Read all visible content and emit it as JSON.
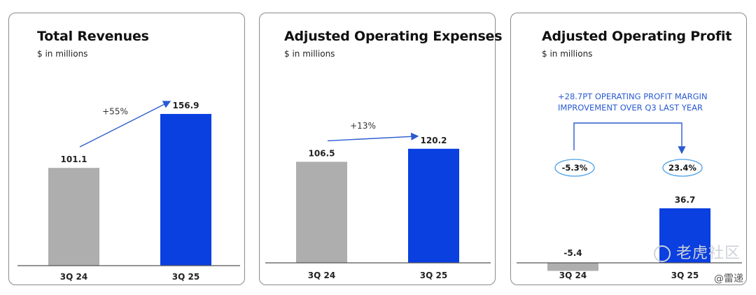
{
  "colors": {
    "bar_prior": "#aeaeae",
    "bar_current": "#0a3fe0",
    "accent": "#2a5bd0",
    "axis": "#555555"
  },
  "chart_data": [
    {
      "type": "bar",
      "title": "Total Revenues",
      "subtitle": "$ in millions",
      "categories": [
        "3Q 24",
        "3Q 25"
      ],
      "values": [
        101.1,
        156.9
      ],
      "value_labels": [
        "101.1",
        "156.9"
      ],
      "annotation": "+55%",
      "ylim": [
        0,
        170
      ]
    },
    {
      "type": "bar",
      "title": "Adjusted Operating Expenses",
      "subtitle": "$ in millions",
      "categories": [
        "3Q 24",
        "3Q 25"
      ],
      "values": [
        106.5,
        120.2
      ],
      "value_labels": [
        "106.5",
        "120.2"
      ],
      "annotation": "+13%",
      "ylim": [
        0,
        170
      ]
    },
    {
      "type": "bar",
      "title": "Adjusted Operating Profit",
      "subtitle": "$ in millions",
      "categories": [
        "3Q 24",
        "3Q 25"
      ],
      "values": [
        -5.4,
        36.7
      ],
      "value_labels": [
        "-5.4",
        "36.7"
      ],
      "annotation_lines": [
        "+28.7PT OPERATING PROFIT MARGIN",
        "IMPROVEMENT OVER Q3 LAST YEAR"
      ],
      "margins": [
        "-5.3%",
        "23.4%"
      ],
      "ylim": [
        -10,
        50
      ]
    }
  ],
  "watermark": "老虎社区",
  "credit": "@雷递"
}
